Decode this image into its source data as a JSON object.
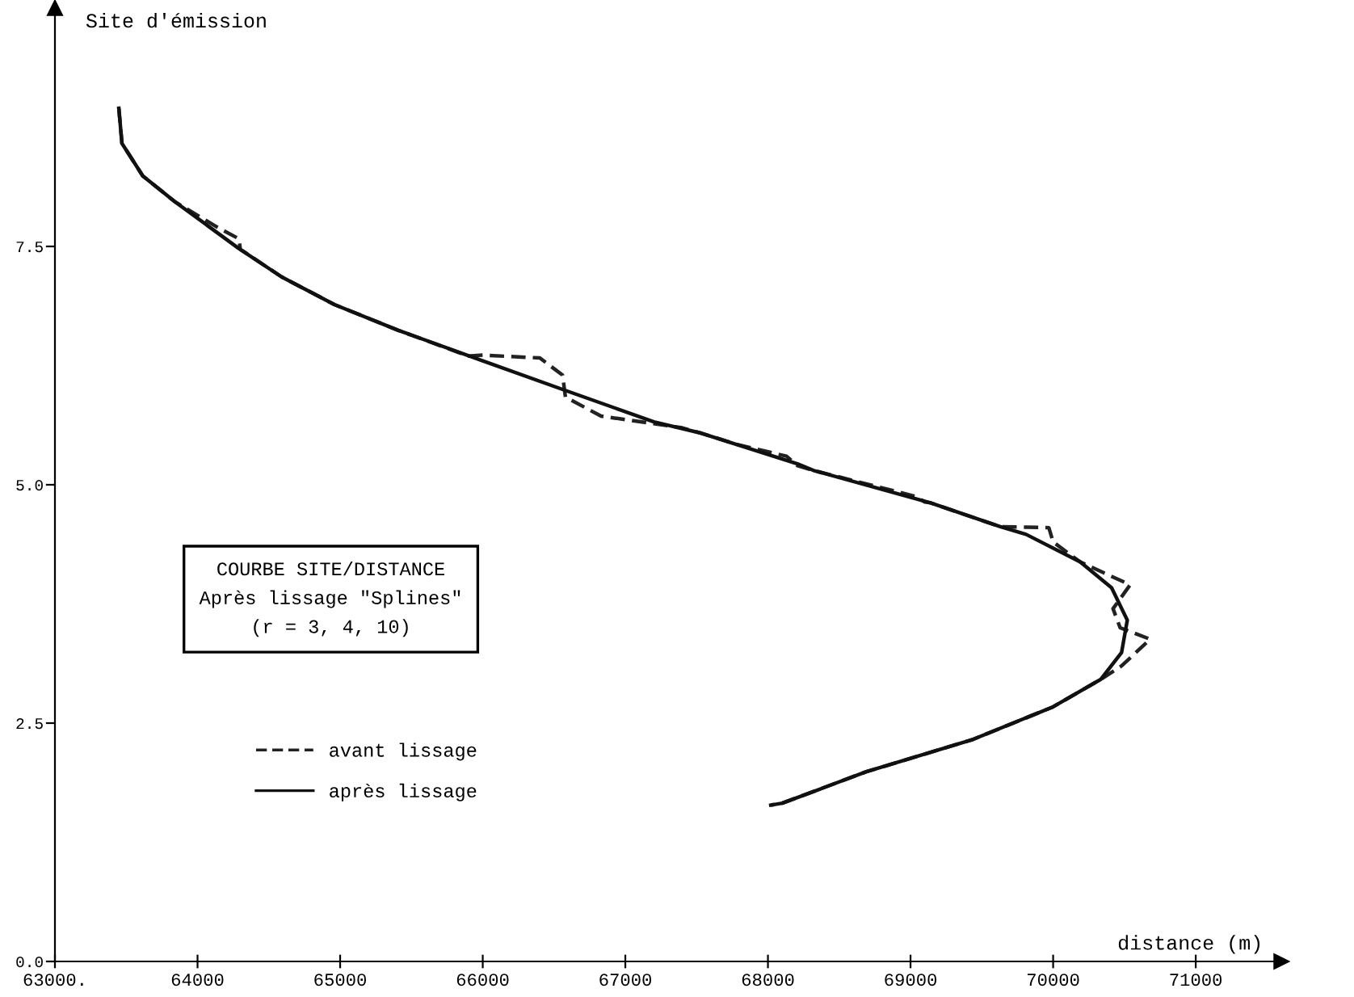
{
  "chart_data": {
    "type": "line",
    "xlabel": "distance (m)",
    "ylabel": "Site d'émission",
    "xlim": [
      63000,
      71600
    ],
    "ylim": [
      0,
      10
    ],
    "xticks": [
      {
        "value": 63000,
        "label": "63000."
      },
      64000,
      65000,
      66000,
      67000,
      68000,
      69000,
      70000,
      71000
    ],
    "yticks": [
      {
        "value": 0,
        "label": "0.0"
      },
      2.5,
      {
        "value": 5,
        "label": "5.0"
      },
      7.5
    ],
    "grid": false,
    "legend": "bottom left",
    "marker": "none",
    "annotations": [
      "COURBE SITE/DISTANCE",
      "Après lissage \"Splines\"",
      "(r = 3, 4, 10)"
    ],
    "series": [
      {
        "name": "avant lissage",
        "color": "#222222",
        "line_style": "dashed",
        "x": [
          63448,
          63470,
          63616,
          63840,
          64140,
          64290,
          64300,
          64590,
          64960,
          65408,
          65900,
          66000,
          66400,
          66560,
          66580,
          66830,
          67390,
          67535,
          67790,
          68130,
          68207,
          68320,
          69030,
          69100,
          69140,
          69630,
          69970,
          70000,
          70190,
          70540,
          70420,
          70470,
          70680,
          70480,
          70335,
          69999,
          69440,
          68690,
          68100,
          68020
        ],
        "values": [
          8.95,
          8.58,
          8.24,
          7.97,
          7.7,
          7.58,
          7.47,
          7.18,
          6.89,
          6.62,
          6.35,
          6.36,
          6.33,
          6.15,
          5.92,
          5.72,
          5.6,
          5.54,
          5.42,
          5.3,
          5.2,
          5.15,
          4.88,
          4.82,
          4.81,
          4.56,
          4.55,
          4.4,
          4.19,
          3.95,
          3.7,
          3.5,
          3.38,
          3.1,
          2.96,
          2.67,
          2.33,
          1.99,
          1.66,
          1.64
        ]
      },
      {
        "name": "après lissage",
        "color": "#111111",
        "line_style": "solid",
        "x": [
          63448,
          63470,
          63616,
          63840,
          64288,
          64590,
          64960,
          65408,
          66000,
          66560,
          67200,
          67535,
          68207,
          68320,
          69140,
          69630,
          69810,
          70190,
          70410,
          70520,
          70480,
          70335,
          69999,
          69440,
          68690,
          68100,
          68020
        ],
        "values": [
          8.95,
          8.58,
          8.24,
          7.97,
          7.48,
          7.18,
          6.89,
          6.62,
          6.3,
          6.0,
          5.66,
          5.54,
          5.22,
          5.15,
          4.81,
          4.56,
          4.48,
          4.19,
          3.92,
          3.58,
          3.24,
          2.96,
          2.67,
          2.33,
          1.99,
          1.66,
          1.64
        ]
      }
    ]
  }
}
